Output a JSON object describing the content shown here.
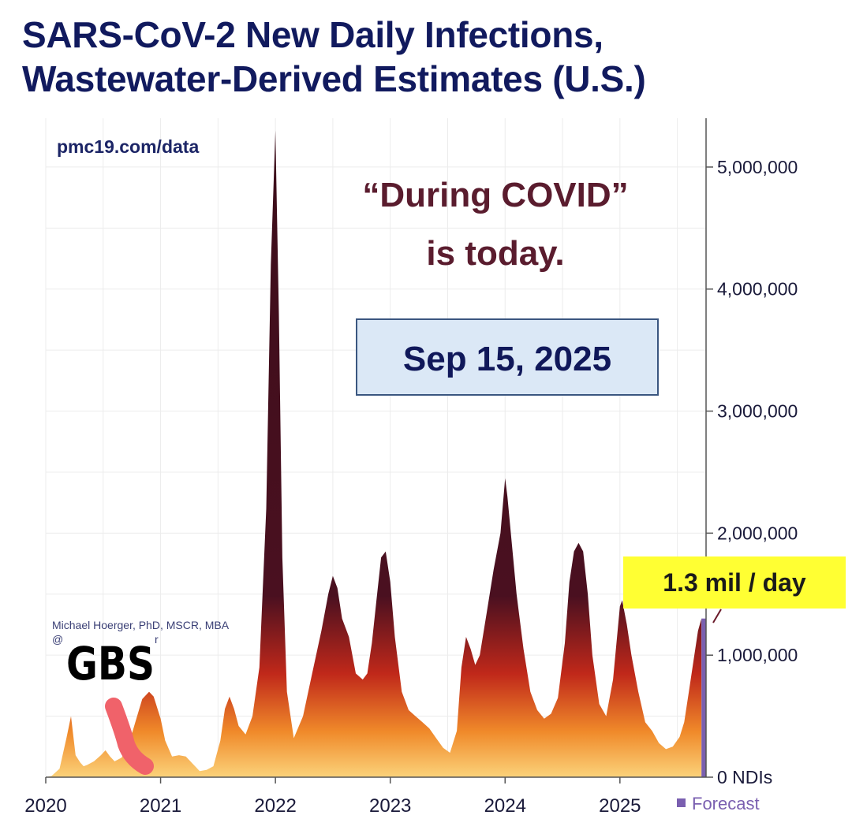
{
  "title_line1": "SARS-CoV-2 New Daily Infections,",
  "title_line2": "Wastewater-Derived Estimates (U.S.)",
  "source": "pmc19.com/data",
  "quote_line1": "“During COVID”",
  "quote_line2": "is today.",
  "date_badge": "Sep 15, 2025",
  "author_line1": "Michael Hoerger, PhD, MSCR, MBA",
  "author_line2": "@",
  "author_line2_end": "r",
  "handwritten_label": "GBS",
  "callout": "1.3 mil / day",
  "legend_forecast": "Forecast",
  "colors": {
    "title": "#111a5e",
    "quote": "#5a1c2e",
    "area_top": "#3c0d1a",
    "area_mid": "#c0281a",
    "area_low": "#f08a2a",
    "area_base": "#fbd27a",
    "forecast": "#7a5fb0",
    "callout_bg": "#ffff33",
    "datebox_bg": "#dbe8f6",
    "marker": "#f0626a"
  },
  "chart_data": {
    "type": "area",
    "title": "SARS-CoV-2 New Daily Infections, Wastewater-Derived Estimates (U.S.)",
    "xlabel": "",
    "ylabel": "",
    "x_ticks": [
      "2020",
      "2021",
      "2022",
      "2023",
      "2024",
      "2025"
    ],
    "y_ticks": [
      "0 NDIs",
      "1,000,000",
      "2,000,000",
      "3,000,000",
      "4,000,000",
      "5,000,000"
    ],
    "ylim": [
      0,
      5400000
    ],
    "xlim": [
      2020.0,
      2025.75
    ],
    "grid": true,
    "legend": [
      {
        "name": "Forecast",
        "position": "bottom-right"
      }
    ],
    "x": [
      2020.0,
      2020.05,
      2020.12,
      2020.18,
      2020.22,
      2020.26,
      2020.3,
      2020.33,
      2020.36,
      2020.42,
      2020.48,
      2020.52,
      2020.56,
      2020.6,
      2020.66,
      2020.72,
      2020.78,
      2020.84,
      2020.9,
      2020.94,
      2021.0,
      2021.04,
      2021.1,
      2021.16,
      2021.22,
      2021.28,
      2021.34,
      2021.4,
      2021.46,
      2021.52,
      2021.56,
      2021.6,
      2021.64,
      2021.68,
      2021.74,
      2021.8,
      2021.86,
      2021.92,
      2021.96,
      2022.0,
      2022.03,
      2022.06,
      2022.1,
      2022.16,
      2022.24,
      2022.32,
      2022.4,
      2022.46,
      2022.5,
      2022.54,
      2022.58,
      2022.64,
      2022.7,
      2022.76,
      2022.8,
      2022.84,
      2022.88,
      2022.92,
      2022.96,
      2023.0,
      2023.04,
      2023.1,
      2023.16,
      2023.22,
      2023.28,
      2023.34,
      2023.4,
      2023.46,
      2023.52,
      2023.58,
      2023.62,
      2023.66,
      2023.7,
      2023.74,
      2023.78,
      2023.84,
      2023.9,
      2023.96,
      2024.0,
      2024.02,
      2024.06,
      2024.1,
      2024.16,
      2024.22,
      2024.28,
      2024.34,
      2024.4,
      2024.46,
      2024.52,
      2024.56,
      2024.6,
      2024.64,
      2024.68,
      2024.72,
      2024.76,
      2024.82,
      2024.88,
      2024.94,
      2025.0,
      2025.02,
      2025.06,
      2025.1,
      2025.16,
      2025.22,
      2025.28,
      2025.34,
      2025.4,
      2025.46,
      2025.52,
      2025.56,
      2025.6,
      2025.64,
      2025.68,
      2025.71
    ],
    "series": [
      {
        "values": [
          0,
          10000,
          70000,
          320000,
          500000,
          180000,
          120000,
          90000,
          100000,
          130000,
          180000,
          220000,
          170000,
          130000,
          160000,
          260000,
          450000,
          640000,
          700000,
          660000,
          480000,
          300000,
          170000,
          180000,
          170000,
          110000,
          50000,
          60000,
          90000,
          300000,
          560000,
          660000,
          560000,
          420000,
          350000,
          500000,
          900000,
          2200000,
          4200000,
          5300000,
          3800000,
          1800000,
          700000,
          320000,
          500000,
          850000,
          1200000,
          1500000,
          1650000,
          1550000,
          1300000,
          1150000,
          850000,
          800000,
          850000,
          1100000,
          1450000,
          1800000,
          1850000,
          1600000,
          1150000,
          700000,
          550000,
          500000,
          450000,
          400000,
          320000,
          240000,
          200000,
          380000,
          900000,
          1150000,
          1050000,
          920000,
          1000000,
          1350000,
          1700000,
          2000000,
          2450000,
          2300000,
          1900000,
          1500000,
          1050000,
          700000,
          550000,
          480000,
          520000,
          650000,
          1100000,
          1600000,
          1850000,
          1920000,
          1850000,
          1500000,
          1000000,
          600000,
          500000,
          800000,
          1400000,
          1450000,
          1250000,
          1000000,
          700000,
          450000,
          380000,
          280000,
          230000,
          250000,
          330000,
          450000,
          700000,
          950000,
          1200000,
          1300000
        ]
      }
    ],
    "forecast_x": [
      2025.71,
      2025.75
    ],
    "annotations": [
      "“During COVID” is today.",
      "Sep 15, 2025",
      "1.3 mil / day",
      "GBS"
    ]
  }
}
